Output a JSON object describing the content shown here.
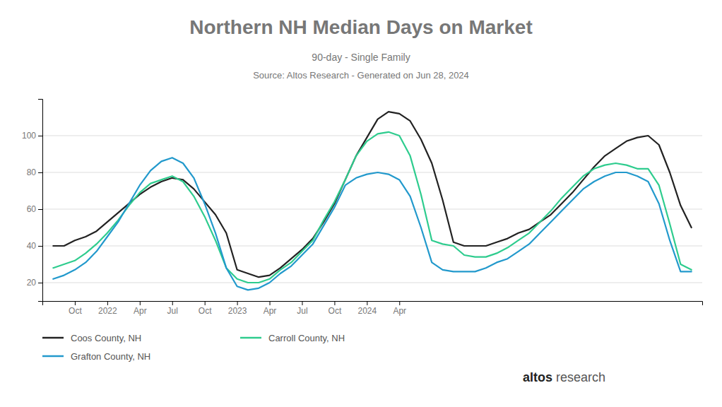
{
  "chart_data": {
    "type": "line",
    "title": "Northern NH Median Days on Market",
    "subtitle": "90-day - Single Family",
    "annotations": [
      "Source: Altos Research - Generated on Jun 28, 2024",
      "altos",
      "research"
    ],
    "categories": [
      null,
      null,
      "Oct",
      null,
      null,
      "2022",
      null,
      null,
      "Apr",
      null,
      null,
      "Jul",
      null,
      null,
      "Oct",
      null,
      null,
      "2023",
      null,
      null,
      "Apr",
      null,
      null,
      "Jul",
      null,
      null,
      "Oct",
      null,
      null,
      "2024",
      null,
      null,
      "Apr",
      null,
      null,
      null,
      null,
      null,
      null,
      null,
      null,
      null,
      null,
      null,
      null,
      null,
      null,
      null,
      null,
      null,
      null,
      null,
      null,
      null,
      null,
      null,
      null,
      null,
      null,
      null
    ],
    "series": [
      {
        "name": "Coos County, NH",
        "color": "#222222",
        "values": [
          40,
          40,
          43,
          45,
          48,
          53,
          58,
          63,
          68,
          72,
          75,
          77,
          76,
          71,
          64,
          57,
          47,
          27,
          25,
          23,
          24,
          28,
          33,
          38,
          44,
          53,
          63,
          76,
          89,
          99,
          109,
          113,
          112,
          108,
          98,
          85,
          65,
          42,
          40,
          40,
          40,
          42,
          44,
          47,
          49,
          53,
          57,
          63,
          69,
          76,
          83,
          89,
          93,
          97,
          99,
          100,
          95,
          80,
          62,
          50
        ]
      },
      {
        "name": "Carroll County, NH",
        "color": "#2ecc8e",
        "values": [
          28,
          30,
          32,
          36,
          41,
          47,
          54,
          62,
          69,
          74,
          76,
          78,
          75,
          67,
          56,
          43,
          28,
          22,
          20,
          20,
          22,
          27,
          31,
          37,
          43,
          54,
          64,
          76,
          89,
          97,
          101,
          102,
          100,
          89,
          68,
          43,
          41,
          40,
          35,
          34,
          34,
          36,
          39,
          43,
          47,
          53,
          59,
          66,
          72,
          78,
          82,
          84,
          85,
          84,
          82,
          82,
          73,
          52,
          30,
          27
        ]
      },
      {
        "name": "Grafton County, NH",
        "color": "#2299cc",
        "values": [
          22,
          24,
          27,
          31,
          37,
          45,
          53,
          63,
          73,
          81,
          86,
          88,
          85,
          77,
          63,
          47,
          28,
          18,
          16,
          17,
          20,
          25,
          29,
          35,
          41,
          51,
          61,
          73,
          77,
          79,
          80,
          79,
          76,
          67,
          50,
          31,
          27,
          26,
          26,
          26,
          28,
          31,
          33,
          37,
          41,
          47,
          53,
          59,
          65,
          71,
          75,
          78,
          80,
          80,
          78,
          75,
          63,
          43,
          26,
          26
        ]
      }
    ],
    "ylim": [
      10,
      120
    ],
    "yticks": [
      20,
      40,
      60,
      80,
      100
    ],
    "grid": true,
    "legend": "bottom"
  }
}
